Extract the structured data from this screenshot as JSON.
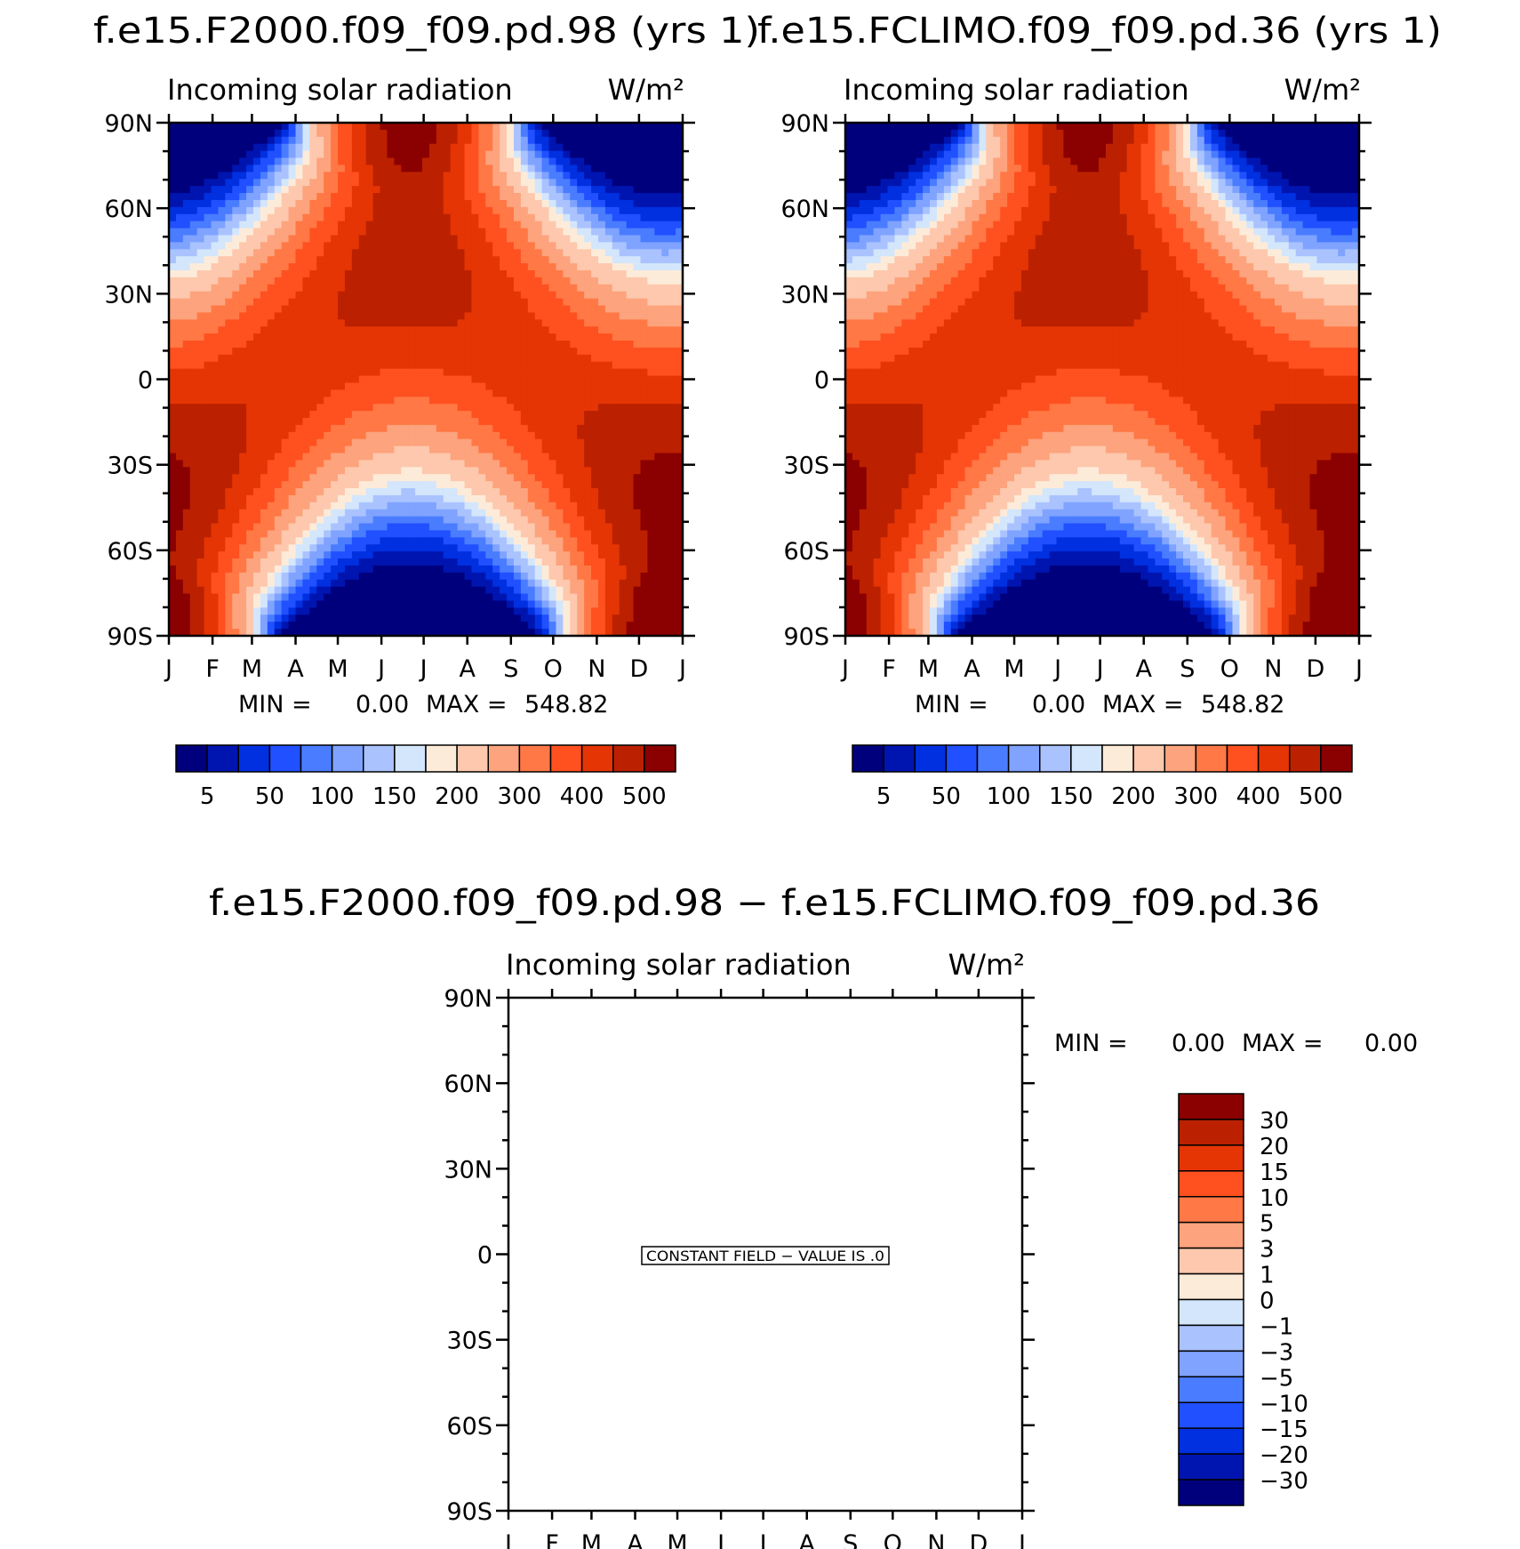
{
  "chart_data": [
    {
      "type": "heatmap",
      "case_title": "f.e15.F2000.f09_f09.pd.98 (yrs 1)",
      "title": "Incoming solar radiation",
      "units": "W/m²",
      "x_tick_labels": [
        "J",
        "F",
        "M",
        "A",
        "M",
        "J",
        "J",
        "A",
        "S",
        "O",
        "N",
        "D",
        "J"
      ],
      "y_tick_labels": [
        "90N",
        "60N",
        "30N",
        "0",
        "30S",
        "60S",
        "90S"
      ],
      "ylim": [
        -90,
        90
      ],
      "min_label": "MIN =",
      "min_value": "0.00",
      "max_label": "MAX =",
      "max_value": "548.82",
      "colorbar_labels": [
        "5",
        "50",
        "100",
        "150",
        "200",
        "300",
        "400",
        "500"
      ],
      "contour_levels": [
        5,
        25,
        50,
        75,
        100,
        125,
        150,
        175,
        200,
        250,
        300,
        350,
        400,
        450,
        500
      ]
    },
    {
      "type": "heatmap",
      "case_title": "f.e15.FCLIMO.f09_f09.pd.36 (yrs 1)",
      "title": "Incoming solar radiation",
      "units": "W/m²",
      "x_tick_labels": [
        "J",
        "F",
        "M",
        "A",
        "M",
        "J",
        "J",
        "A",
        "S",
        "O",
        "N",
        "D",
        "J"
      ],
      "y_tick_labels": [
        "90N",
        "60N",
        "30N",
        "0",
        "30S",
        "60S",
        "90S"
      ],
      "ylim": [
        -90,
        90
      ],
      "min_label": "MIN =",
      "min_value": "0.00",
      "max_label": "MAX =",
      "max_value": "548.82",
      "colorbar_labels": [
        "5",
        "50",
        "100",
        "150",
        "200",
        "300",
        "400",
        "500"
      ],
      "contour_levels": [
        5,
        25,
        50,
        75,
        100,
        125,
        150,
        175,
        200,
        250,
        300,
        350,
        400,
        450,
        500
      ]
    },
    {
      "type": "heatmap",
      "case_title": "f.e15.F2000.f09_f09.pd.98 − f.e15.FCLIMO.f09_f09.pd.36",
      "title": "Incoming solar radiation",
      "units": "W/m²",
      "x_tick_labels": [
        "J",
        "F",
        "M",
        "A",
        "M",
        "J",
        "J",
        "A",
        "S",
        "O",
        "N",
        "D",
        "J"
      ],
      "y_tick_labels": [
        "90N",
        "60N",
        "30N",
        "0",
        "30S",
        "60S",
        "90S"
      ],
      "ylim": [
        -90,
        90
      ],
      "min_label": "MIN =",
      "min_value": "0.00",
      "max_label": "MAX =",
      "max_value": "0.00",
      "constant_field_text": "CONSTANT FIELD − VALUE IS .0",
      "colorbar_labels": [
        "30",
        "20",
        "15",
        "10",
        "5",
        "3",
        "1",
        "0",
        "−1",
        "−3",
        "−5",
        "−10",
        "−15",
        "−20",
        "−30"
      ]
    }
  ],
  "palette_abs": [
    "#00007d",
    "#0015b0",
    "#0030e0",
    "#2050ff",
    "#4a7cff",
    "#7fa3ff",
    "#aac3ff",
    "#d3e6fb",
    "#fdebd9",
    "#fdc8ad",
    "#fda37d",
    "#ff7845",
    "#ff5020",
    "#e53505",
    "#bb2100",
    "#8b0000"
  ],
  "palette_diff": [
    "#8b0000",
    "#bb2100",
    "#e53505",
    "#ff5020",
    "#ff7845",
    "#fda37d",
    "#fdc8ad",
    "#fdebd9",
    "#d3e6fb",
    "#aac3ff",
    "#7fa3ff",
    "#4a7cff",
    "#2050ff",
    "#0030e0",
    "#0015b0",
    "#00007d"
  ]
}
